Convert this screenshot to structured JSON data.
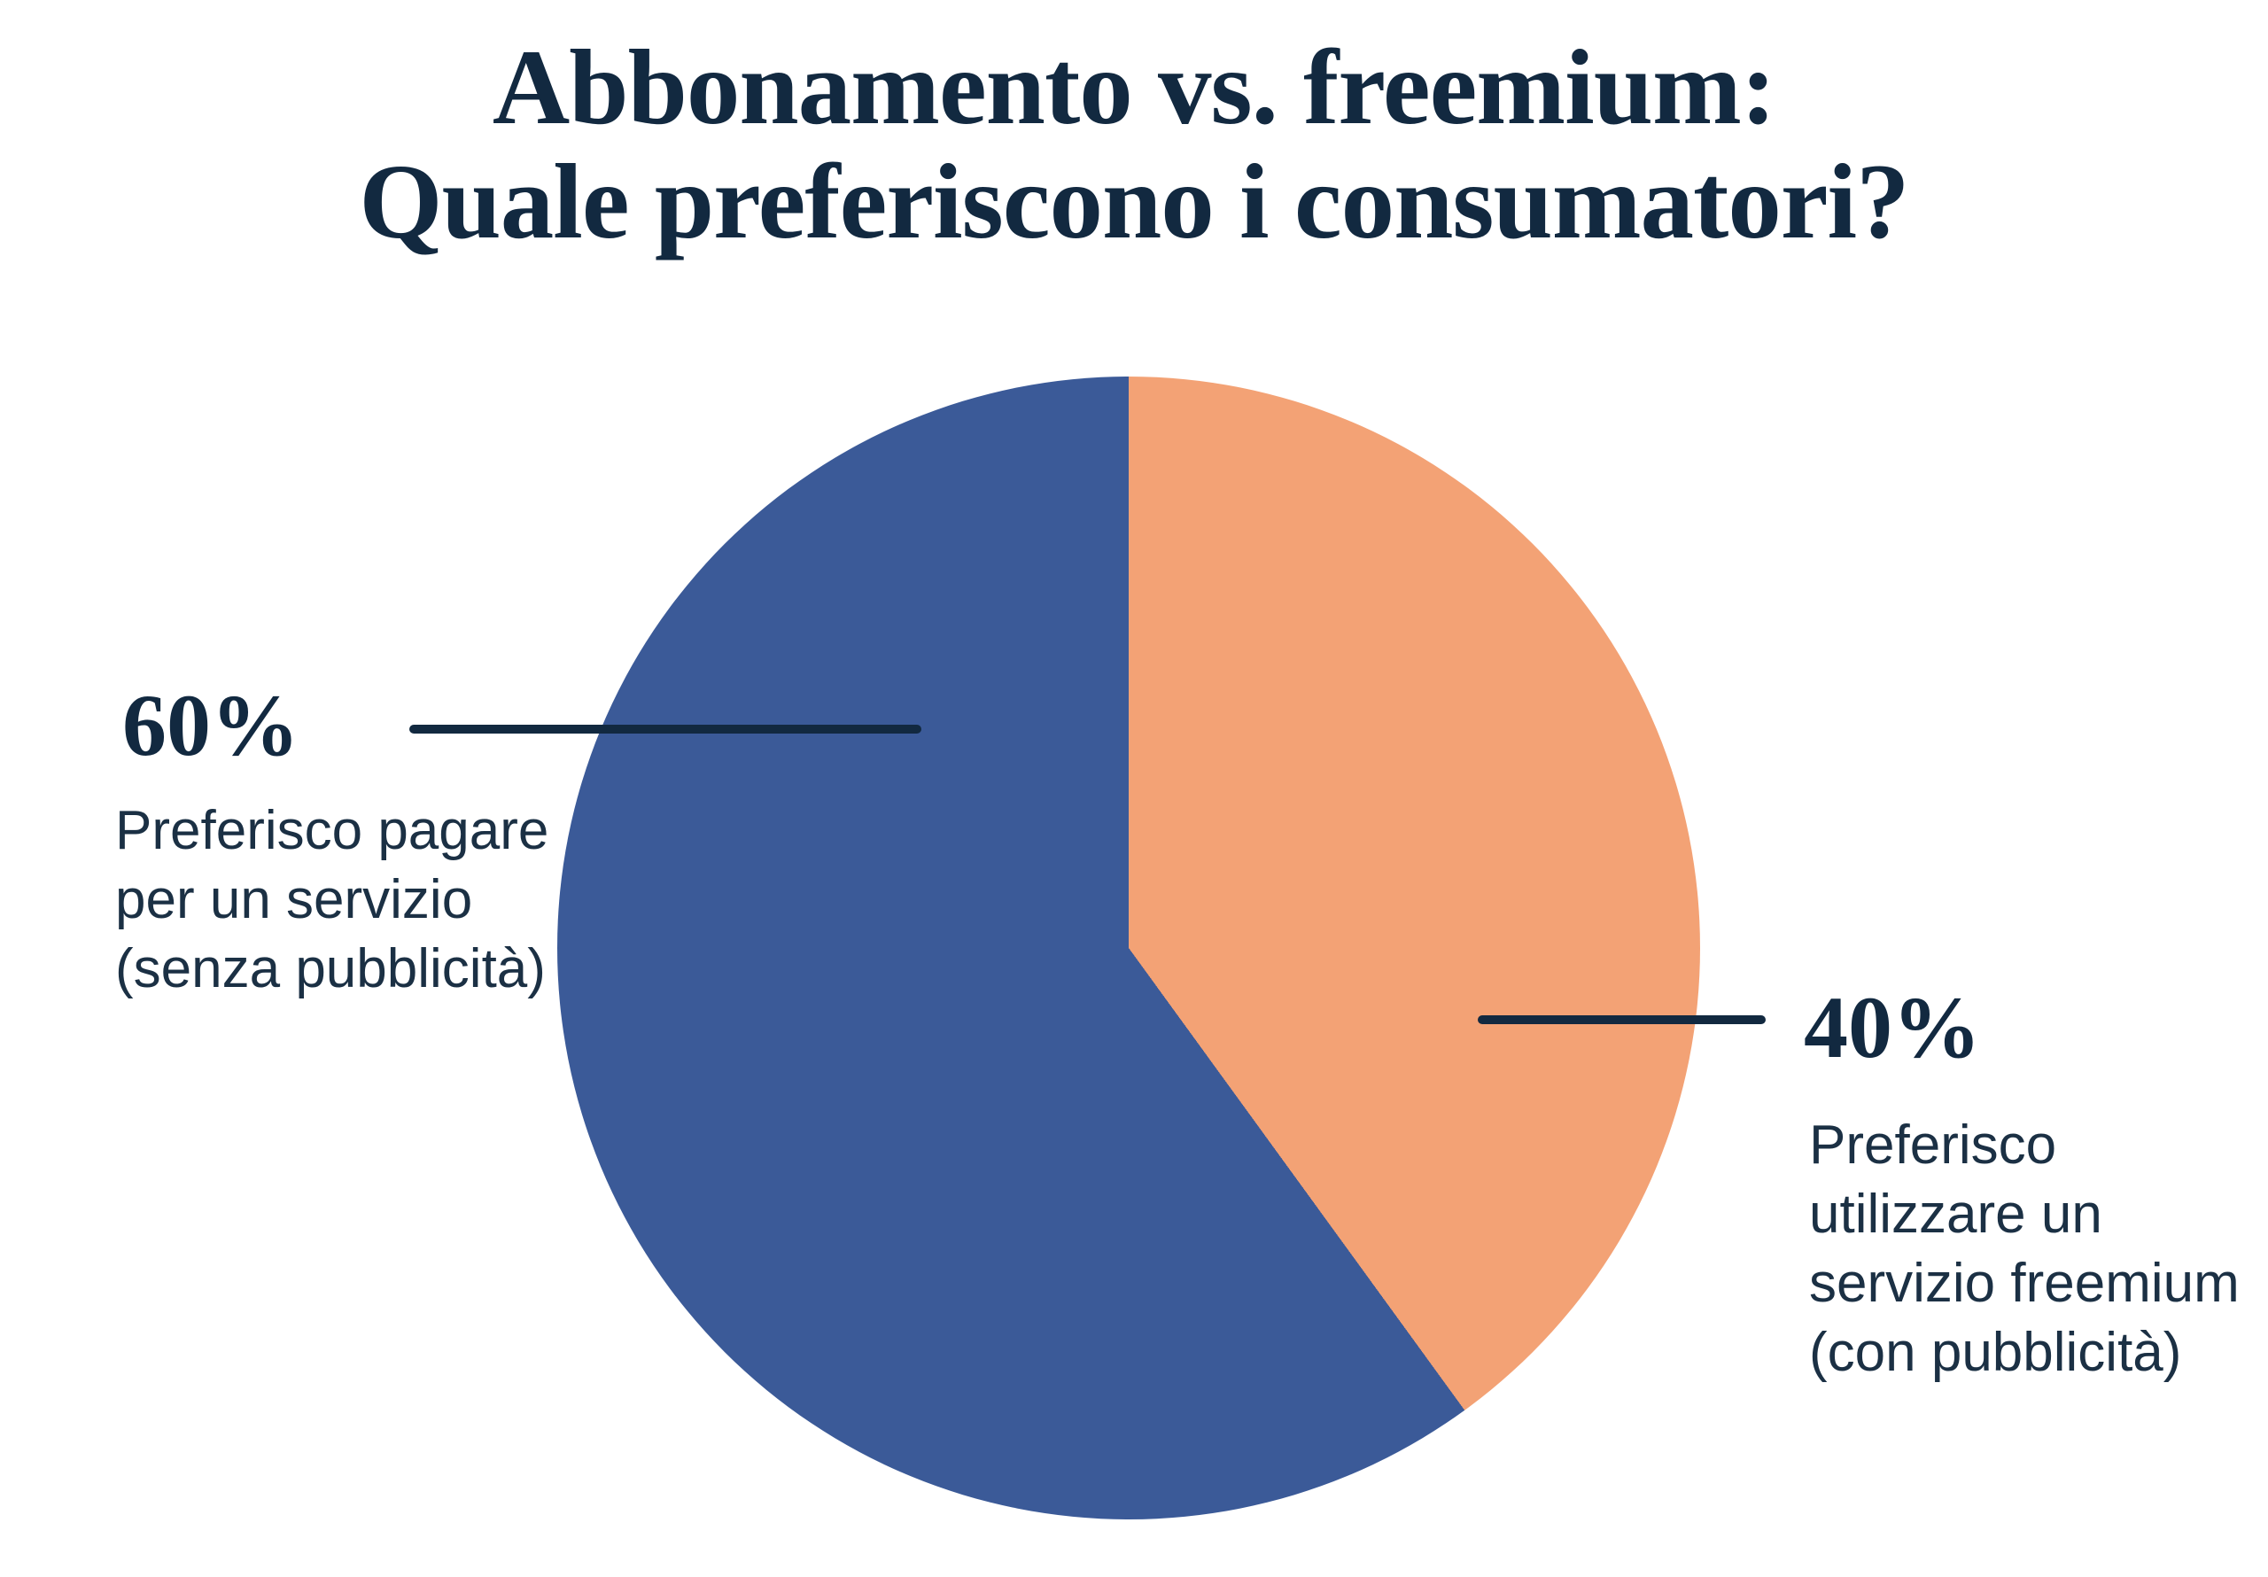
{
  "colors": {
    "background": "#ffffff",
    "text_strong": "#122940",
    "text_body": "#1b3044",
    "slice_blue": "#3b5a98",
    "slice_orange": "#f3a275",
    "leader_line": "#122940"
  },
  "title": {
    "lines": [
      "Abbonamento vs. freemium:",
      "Quale preferiscono i consumatori?"
    ]
  },
  "callouts": {
    "left": {
      "percent": "60%",
      "description_lines": [
        "Preferisco pagare",
        "per un servizio",
        "(senza pubblicità)"
      ]
    },
    "right": {
      "percent": "40%",
      "description_lines": [
        "Preferisco",
        "utilizzare un",
        "servizio freemium",
        "(con pubblicità)"
      ]
    }
  },
  "chart_data": {
    "type": "pie",
    "title": "Abbonamento vs. freemium: Quale preferiscono i consumatori?",
    "start_angle_deg": 0,
    "direction": "clockwise",
    "order_note": "slices listed clockwise starting at 12 o'clock",
    "legend_position": "callout labels with leader lines",
    "slices": [
      {
        "label": "Preferisco utilizzare un servizio freemium (con pubblicità)",
        "value_pct": 40,
        "color": "#f3a275",
        "callout": "40%"
      },
      {
        "label": "Preferisco pagare per un servizio (senza pubblicità)",
        "value_pct": 60,
        "color": "#3b5a98",
        "callout": "60%"
      }
    ]
  }
}
